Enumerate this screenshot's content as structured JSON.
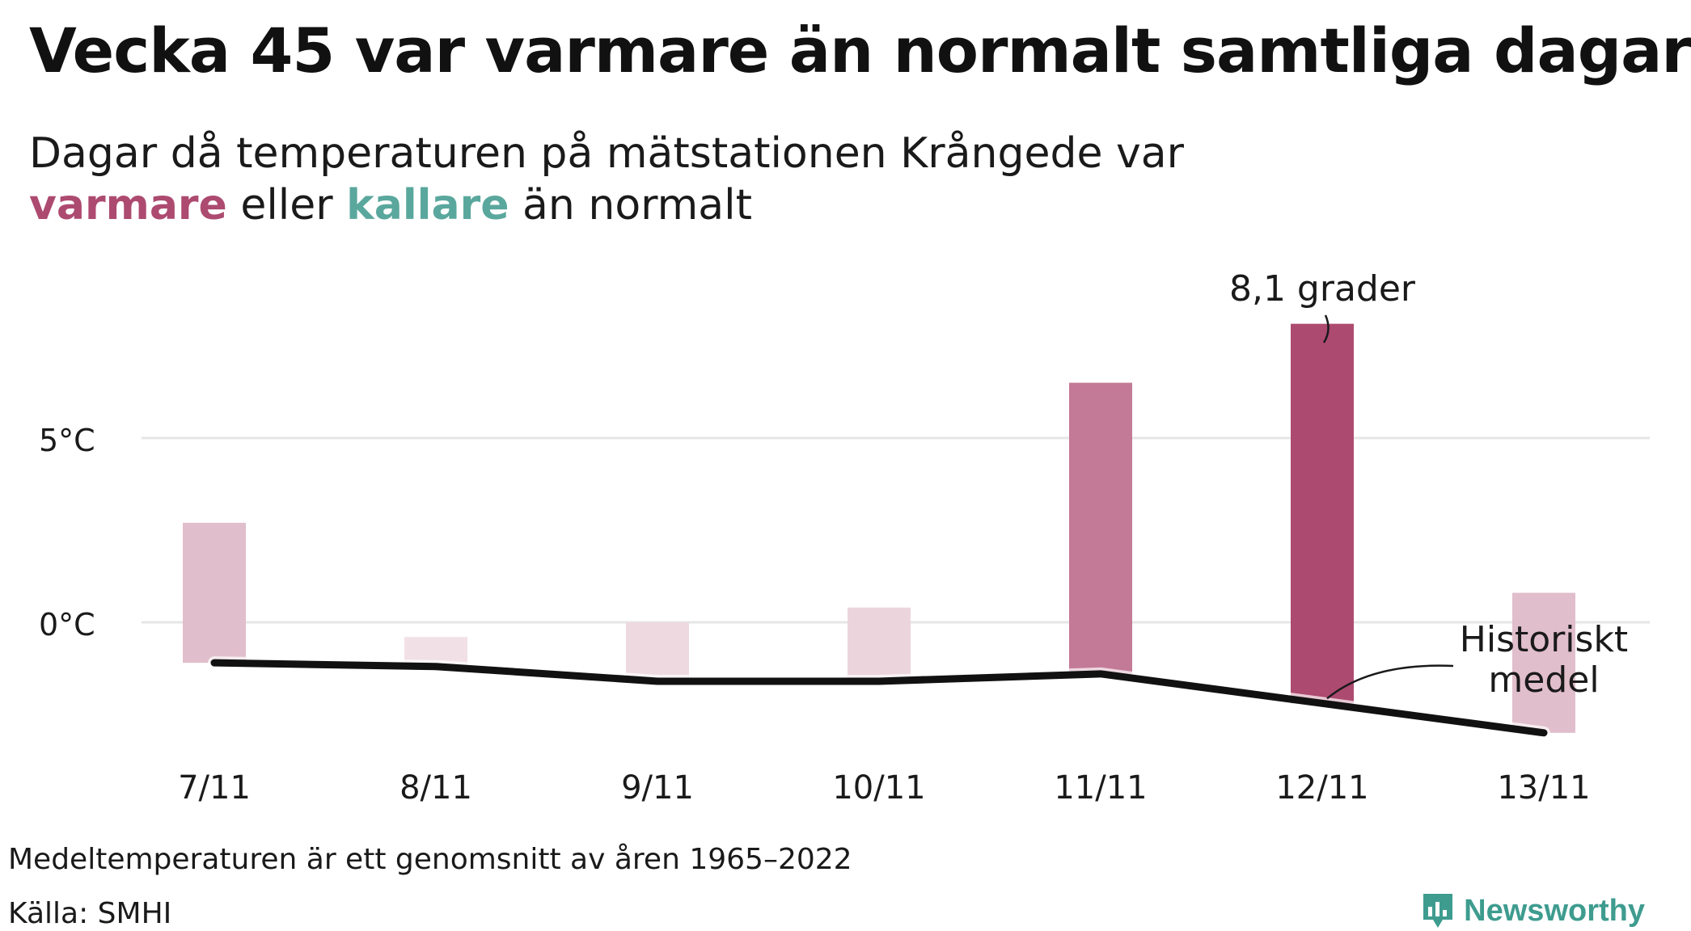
{
  "title": "Vecka 45 var varmare än normalt samtliga dagar",
  "subtitle": {
    "line1": "Dagar då temperaturen på mätstationen Krångede var",
    "warm_word": "varmare",
    "middle": "eller",
    "cold_word": "kallare",
    "end": "än normalt"
  },
  "colors": {
    "warm": "#ad4a70",
    "cold": "#5aa79d",
    "mean_line": "#111111",
    "grid": "#e6e6e6",
    "brand": "#3e9c8f"
  },
  "chart_data": {
    "type": "bar",
    "categories": [
      "7/11",
      "8/11",
      "9/11",
      "10/11",
      "11/11",
      "12/11",
      "13/11"
    ],
    "series": [
      {
        "values": [
          2.7,
          -0.4,
          0.0,
          0.4,
          6.5,
          8.1,
          0.8
        ]
      },
      {
        "name": "Historiskt medel",
        "values": [
          -1.1,
          -1.2,
          -1.6,
          -1.6,
          -1.4,
          -2.2,
          -3.0
        ]
      }
    ],
    "yticks": [
      {
        "value": 0,
        "label": "0°C"
      },
      {
        "value": 5,
        "label": "5°C"
      }
    ],
    "ylim": [
      -3.5,
      9.5
    ],
    "grid": true,
    "annotations": [
      {
        "text": "8,1 grader",
        "category": "12/11"
      },
      {
        "text_lines": [
          "Historiskt",
          "medel"
        ],
        "category": "13/11"
      }
    ]
  },
  "footnote": "Medeltemperaturen är ett genomsnitt av åren 1965–2022",
  "source": "Källa: SMHI",
  "brand": {
    "name": "Newsworthy",
    "icon": "newsworthy-logo-icon"
  }
}
